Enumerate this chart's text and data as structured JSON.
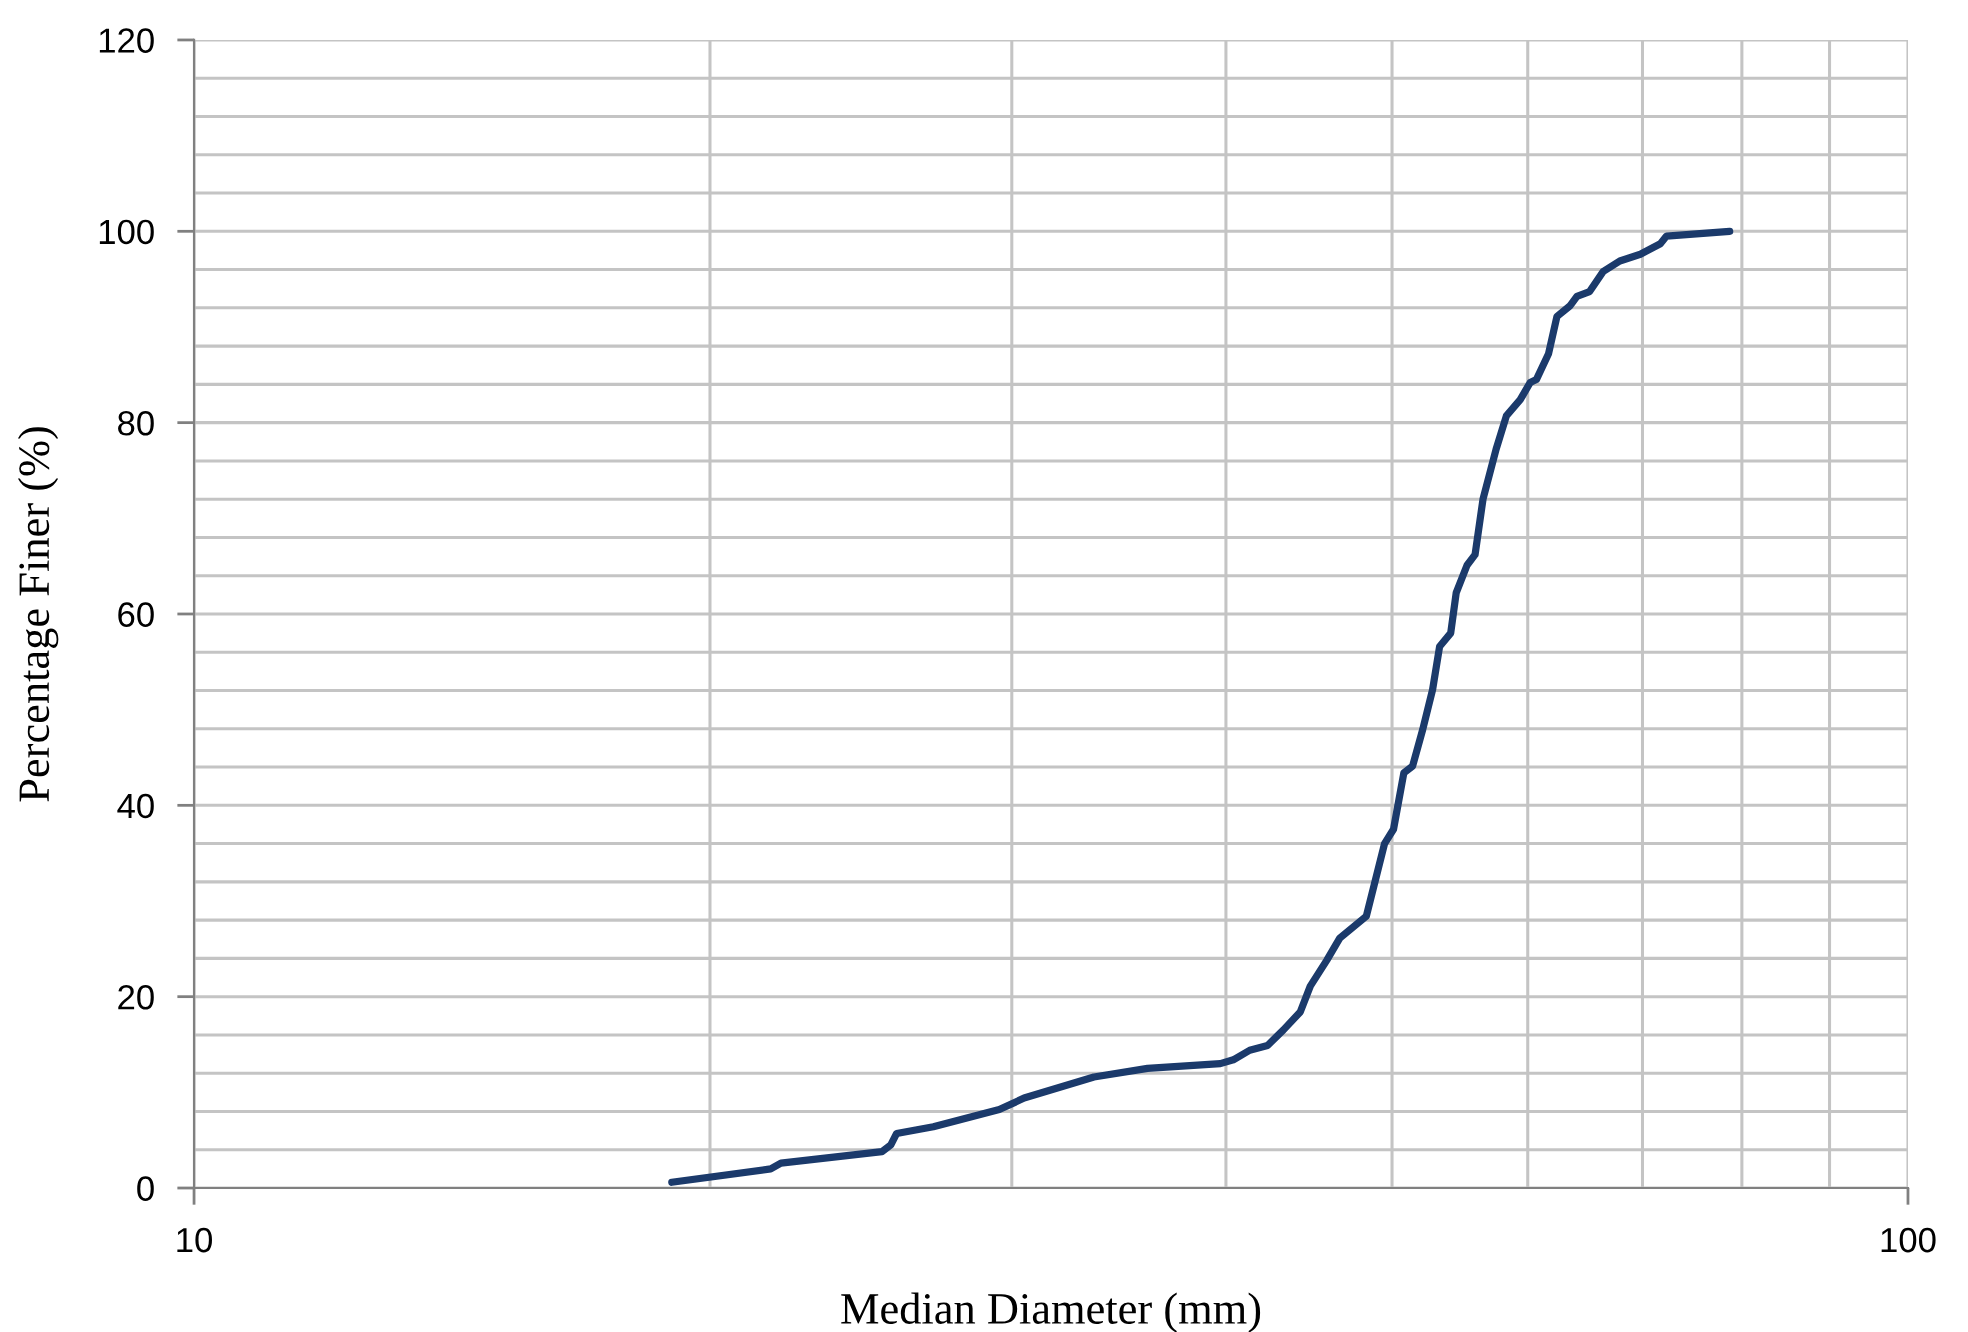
{
  "chart_data": {
    "type": "line",
    "xlabel": "Median Diameter (mm)",
    "ylabel": "Percentage Finer (%)",
    "log": "x",
    "xlim": [
      10,
      100
    ],
    "xticks": [
      10,
      {
        "value": 20,
        "label": null
      },
      {
        "value": 30,
        "label": null
      },
      {
        "value": 40,
        "label": null
      },
      {
        "value": 50,
        "label": null
      },
      {
        "value": 60,
        "label": null
      },
      {
        "value": 70,
        "label": null
      },
      {
        "value": 80,
        "label": null
      },
      {
        "value": 90,
        "label": null
      },
      100
    ],
    "ylim": [
      0,
      120
    ],
    "yticks": [
      0,
      {
        "value": 4,
        "label": null
      },
      {
        "value": 8,
        "label": null
      },
      {
        "value": 12,
        "label": null
      },
      {
        "value": 16,
        "label": null
      },
      20,
      {
        "value": 24,
        "label": null
      },
      {
        "value": 28,
        "label": null
      },
      {
        "value": 32,
        "label": null
      },
      {
        "value": 36,
        "label": null
      },
      40,
      {
        "value": 44,
        "label": null
      },
      {
        "value": 48,
        "label": null
      },
      {
        "value": 52,
        "label": null
      },
      {
        "value": 56,
        "label": null
      },
      60,
      {
        "value": 64,
        "label": null
      },
      {
        "value": 68,
        "label": null
      },
      {
        "value": 72,
        "label": null
      },
      {
        "value": 76,
        "label": null
      },
      80,
      {
        "value": 84,
        "label": null
      },
      {
        "value": 88,
        "label": null
      },
      {
        "value": 92,
        "label": null
      },
      {
        "value": 96,
        "label": null
      },
      100,
      {
        "value": 104,
        "label": null
      },
      {
        "value": 108,
        "label": null
      },
      {
        "value": 112,
        "label": null
      },
      {
        "value": 116,
        "label": null
      },
      120
    ],
    "grid": true,
    "line_style": "solid",
    "x": [
      19.0,
      21.7,
      22.0,
      25.2,
      25.5,
      25.7,
      27.0,
      29.5,
      30.5,
      33.5,
      36.0,
      39.7,
      40.4,
      41.3,
      42.3,
      43.2,
      44.2,
      44.8,
      45.8,
      46.6,
      48.3,
      49.5,
      50.1,
      50.8,
      51.4,
      52.1,
      52.8,
      53.3,
      54.1,
      54.5,
      55.3,
      55.9,
      56.5,
      57.5,
      58.3,
      59.4,
      60.2,
      60.7,
      61.7,
      62.4,
      63.5,
      64.1,
      65.2,
      66.4,
      67.9,
      69.8,
      71.7,
      72.3,
      78.7
    ],
    "series": [
      {
        "color": "#1b3a6b",
        "values": [
          0.6,
          2.0,
          2.6,
          3.8,
          4.5,
          5.7,
          6.4,
          8.2,
          9.4,
          11.6,
          12.5,
          13.0,
          13.4,
          14.4,
          14.9,
          16.5,
          18.4,
          21.1,
          23.8,
          26.1,
          28.4,
          36.0,
          37.5,
          43.4,
          44.1,
          47.9,
          52.1,
          56.6,
          58.0,
          62.2,
          65.1,
          66.2,
          72.0,
          77.2,
          80.7,
          82.4,
          84.2,
          84.5,
          87.2,
          91.1,
          92.2,
          93.2,
          93.7,
          95.8,
          96.9,
          97.6,
          98.7,
          99.5,
          100
        ]
      }
    ]
  }
}
